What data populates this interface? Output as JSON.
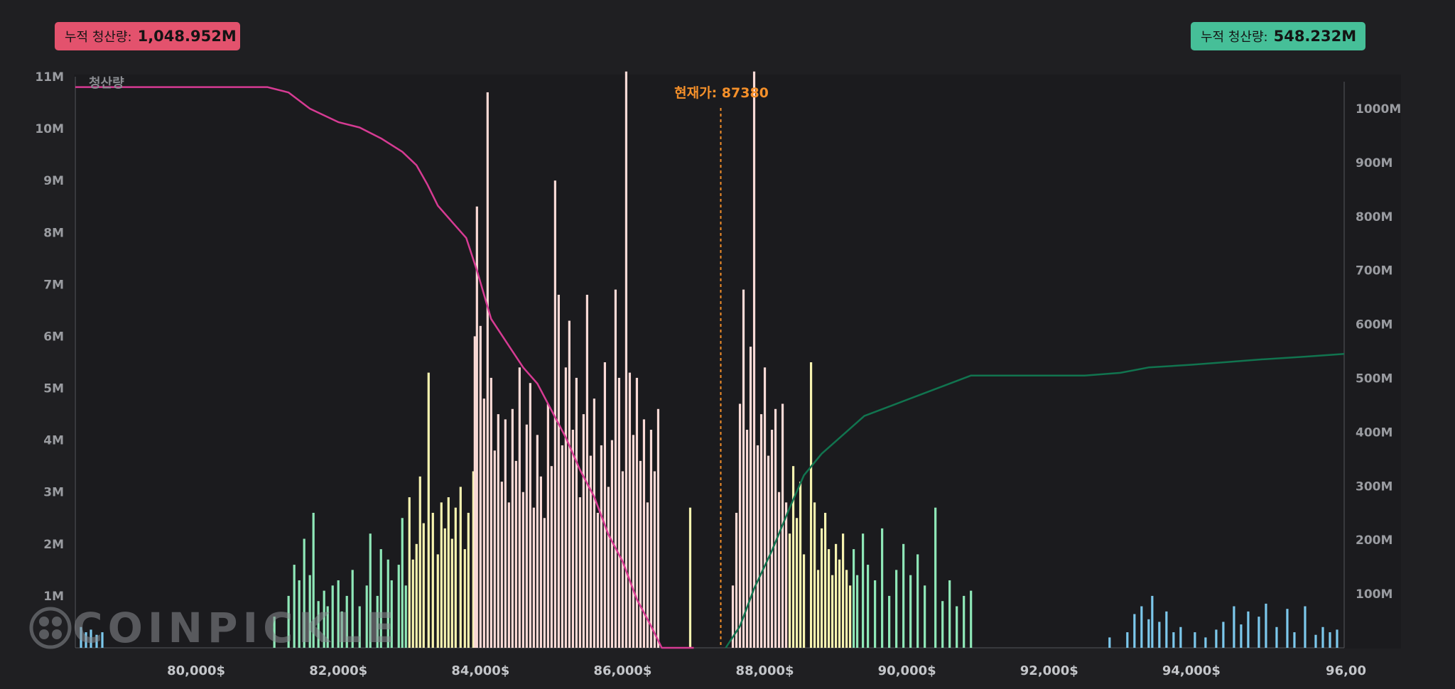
{
  "badges": {
    "left": {
      "label": "누적 청산량:",
      "value": "1,048.952M",
      "color": "#e3526d"
    },
    "right": {
      "label": "누적 청산량:",
      "value": "548.232M",
      "color": "#46bf98"
    }
  },
  "watermark": "COINPICKLE",
  "chart_data": {
    "type": "bar",
    "title": "",
    "ylabel": "청산량",
    "xlim": [
      78300,
      96150
    ],
    "ylim_left": [
      0,
      11000000
    ],
    "ylim_right": [
      0,
      1050000000
    ],
    "x_ticks": [
      "80,000$",
      "82,000$",
      "84,000$",
      "86,000$",
      "88,000$",
      "90,000$",
      "92,000$",
      "94,000$",
      "96,00"
    ],
    "y_left_ticks": [
      "1M",
      "2M",
      "3M",
      "4M",
      "5M",
      "6M",
      "7M",
      "8M",
      "9M",
      "10M",
      "11M"
    ],
    "y_right_ticks": [
      "100M",
      "200M",
      "300M",
      "400M",
      "500M",
      "600M",
      "700M",
      "800M",
      "900M",
      "1000M"
    ],
    "current_price": {
      "label": "현재가: 87380",
      "value": 87380,
      "color": "#f5902a"
    },
    "bar_colors": [
      "#8fe8b8",
      "#f7f3b0",
      "#fbdad6",
      "#7cc8ec"
    ],
    "bars": [
      {
        "x": 78380,
        "value": 400000,
        "level": 3
      },
      {
        "x": 78450,
        "value": 300000,
        "level": 3
      },
      {
        "x": 78520,
        "value": 350000,
        "level": 3
      },
      {
        "x": 78600,
        "value": 250000,
        "level": 3
      },
      {
        "x": 78680,
        "value": 300000,
        "level": 3
      },
      {
        "x": 81100,
        "value": 600000,
        "level": 0
      },
      {
        "x": 81300,
        "value": 1000000,
        "level": 0
      },
      {
        "x": 81380,
        "value": 1600000,
        "level": 0
      },
      {
        "x": 81450,
        "value": 1300000,
        "level": 0
      },
      {
        "x": 81520,
        "value": 2100000,
        "level": 0
      },
      {
        "x": 81600,
        "value": 1400000,
        "level": 0
      },
      {
        "x": 81650,
        "value": 2600000,
        "level": 0
      },
      {
        "x": 81720,
        "value": 900000,
        "level": 0
      },
      {
        "x": 81800,
        "value": 1100000,
        "level": 0
      },
      {
        "x": 81850,
        "value": 800000,
        "level": 0
      },
      {
        "x": 81920,
        "value": 1200000,
        "level": 0
      },
      {
        "x": 82000,
        "value": 1300000,
        "level": 0
      },
      {
        "x": 82050,
        "value": 700000,
        "level": 0
      },
      {
        "x": 82120,
        "value": 1000000,
        "level": 0
      },
      {
        "x": 82200,
        "value": 1500000,
        "level": 0
      },
      {
        "x": 82300,
        "value": 800000,
        "level": 0
      },
      {
        "x": 82400,
        "value": 1200000,
        "level": 0
      },
      {
        "x": 82450,
        "value": 2200000,
        "level": 0
      },
      {
        "x": 82550,
        "value": 1000000,
        "level": 0
      },
      {
        "x": 82600,
        "value": 1900000,
        "level": 0
      },
      {
        "x": 82700,
        "value": 1700000,
        "level": 0
      },
      {
        "x": 82750,
        "value": 1300000,
        "level": 0
      },
      {
        "x": 82850,
        "value": 1600000,
        "level": 0
      },
      {
        "x": 82900,
        "value": 2500000,
        "level": 0
      },
      {
        "x": 82950,
        "value": 1200000,
        "level": 0
      },
      {
        "x": 83000,
        "value": 2900000,
        "level": 1
      },
      {
        "x": 83050,
        "value": 1700000,
        "level": 1
      },
      {
        "x": 83100,
        "value": 2000000,
        "level": 1
      },
      {
        "x": 83150,
        "value": 3300000,
        "level": 1
      },
      {
        "x": 83200,
        "value": 2400000,
        "level": 1
      },
      {
        "x": 83270,
        "value": 5300000,
        "level": 1
      },
      {
        "x": 83330,
        "value": 2600000,
        "level": 1
      },
      {
        "x": 83400,
        "value": 1800000,
        "level": 1
      },
      {
        "x": 83450,
        "value": 2800000,
        "level": 1
      },
      {
        "x": 83500,
        "value": 2300000,
        "level": 1
      },
      {
        "x": 83550,
        "value": 2900000,
        "level": 1
      },
      {
        "x": 83600,
        "value": 2100000,
        "level": 1
      },
      {
        "x": 83650,
        "value": 2700000,
        "level": 1
      },
      {
        "x": 83720,
        "value": 3100000,
        "level": 1
      },
      {
        "x": 83780,
        "value": 1900000,
        "level": 1
      },
      {
        "x": 83830,
        "value": 2600000,
        "level": 1
      },
      {
        "x": 83900,
        "value": 3400000,
        "level": 1
      },
      {
        "x": 83920,
        "value": 6000000,
        "level": 2
      },
      {
        "x": 83950,
        "value": 8500000,
        "level": 2
      },
      {
        "x": 84000,
        "value": 6200000,
        "level": 2
      },
      {
        "x": 84050,
        "value": 4800000,
        "level": 2
      },
      {
        "x": 84100,
        "value": 10700000,
        "level": 2
      },
      {
        "x": 84150,
        "value": 5200000,
        "level": 2
      },
      {
        "x": 84200,
        "value": 3800000,
        "level": 2
      },
      {
        "x": 84250,
        "value": 4500000,
        "level": 2
      },
      {
        "x": 84300,
        "value": 3200000,
        "level": 2
      },
      {
        "x": 84350,
        "value": 4400000,
        "level": 2
      },
      {
        "x": 84400,
        "value": 2800000,
        "level": 2
      },
      {
        "x": 84450,
        "value": 4600000,
        "level": 2
      },
      {
        "x": 84500,
        "value": 3600000,
        "level": 2
      },
      {
        "x": 84550,
        "value": 5400000,
        "level": 2
      },
      {
        "x": 84600,
        "value": 3000000,
        "level": 2
      },
      {
        "x": 84650,
        "value": 4300000,
        "level": 2
      },
      {
        "x": 84700,
        "value": 5100000,
        "level": 2
      },
      {
        "x": 84750,
        "value": 2700000,
        "level": 2
      },
      {
        "x": 84800,
        "value": 4100000,
        "level": 2
      },
      {
        "x": 84850,
        "value": 3300000,
        "level": 2
      },
      {
        "x": 84900,
        "value": 2500000,
        "level": 2
      },
      {
        "x": 84950,
        "value": 4700000,
        "level": 2
      },
      {
        "x": 85000,
        "value": 3500000,
        "level": 2
      },
      {
        "x": 85050,
        "value": 9000000,
        "level": 2
      },
      {
        "x": 85100,
        "value": 6800000,
        "level": 2
      },
      {
        "x": 85150,
        "value": 3900000,
        "level": 2
      },
      {
        "x": 85200,
        "value": 5400000,
        "level": 2
      },
      {
        "x": 85250,
        "value": 6300000,
        "level": 2
      },
      {
        "x": 85300,
        "value": 4200000,
        "level": 2
      },
      {
        "x": 85350,
        "value": 5200000,
        "level": 2
      },
      {
        "x": 85400,
        "value": 2900000,
        "level": 2
      },
      {
        "x": 85450,
        "value": 4500000,
        "level": 2
      },
      {
        "x": 85500,
        "value": 6800000,
        "level": 2
      },
      {
        "x": 85550,
        "value": 3700000,
        "level": 2
      },
      {
        "x": 85600,
        "value": 4800000,
        "level": 2
      },
      {
        "x": 85650,
        "value": 2600000,
        "level": 2
      },
      {
        "x": 85700,
        "value": 3900000,
        "level": 2
      },
      {
        "x": 85750,
        "value": 5500000,
        "level": 2
      },
      {
        "x": 85800,
        "value": 3100000,
        "level": 2
      },
      {
        "x": 85850,
        "value": 4000000,
        "level": 2
      },
      {
        "x": 85900,
        "value": 6900000,
        "level": 2
      },
      {
        "x": 85950,
        "value": 5200000,
        "level": 2
      },
      {
        "x": 86000,
        "value": 3400000,
        "level": 2
      },
      {
        "x": 86050,
        "value": 11100000,
        "level": 2
      },
      {
        "x": 86100,
        "value": 5300000,
        "level": 2
      },
      {
        "x": 86150,
        "value": 4100000,
        "level": 2
      },
      {
        "x": 86200,
        "value": 5200000,
        "level": 2
      },
      {
        "x": 86250,
        "value": 3600000,
        "level": 2
      },
      {
        "x": 86300,
        "value": 4400000,
        "level": 2
      },
      {
        "x": 86350,
        "value": 2800000,
        "level": 2
      },
      {
        "x": 86400,
        "value": 4200000,
        "level": 2
      },
      {
        "x": 86450,
        "value": 3400000,
        "level": 2
      },
      {
        "x": 86500,
        "value": 4600000,
        "level": 2
      },
      {
        "x": 86950,
        "value": 2700000,
        "level": 1
      },
      {
        "x": 87550,
        "value": 1200000,
        "level": 2
      },
      {
        "x": 87600,
        "value": 2600000,
        "level": 2
      },
      {
        "x": 87650,
        "value": 4700000,
        "level": 2
      },
      {
        "x": 87700,
        "value": 6900000,
        "level": 2
      },
      {
        "x": 87750,
        "value": 4200000,
        "level": 2
      },
      {
        "x": 87800,
        "value": 5800000,
        "level": 2
      },
      {
        "x": 87850,
        "value": 11100000,
        "level": 2
      },
      {
        "x": 87900,
        "value": 3900000,
        "level": 2
      },
      {
        "x": 87950,
        "value": 4500000,
        "level": 2
      },
      {
        "x": 88000,
        "value": 5400000,
        "level": 2
      },
      {
        "x": 88050,
        "value": 3700000,
        "level": 2
      },
      {
        "x": 88100,
        "value": 4200000,
        "level": 2
      },
      {
        "x": 88150,
        "value": 4600000,
        "level": 2
      },
      {
        "x": 88200,
        "value": 3000000,
        "level": 2
      },
      {
        "x": 88250,
        "value": 4700000,
        "level": 2
      },
      {
        "x": 88300,
        "value": 2800000,
        "level": 2
      },
      {
        "x": 88350,
        "value": 2200000,
        "level": 1
      },
      {
        "x": 88400,
        "value": 3500000,
        "level": 1
      },
      {
        "x": 88450,
        "value": 2500000,
        "level": 1
      },
      {
        "x": 88500,
        "value": 3200000,
        "level": 1
      },
      {
        "x": 88550,
        "value": 1800000,
        "level": 1
      },
      {
        "x": 88650,
        "value": 5500000,
        "level": 1
      },
      {
        "x": 88700,
        "value": 2800000,
        "level": 1
      },
      {
        "x": 88750,
        "value": 1500000,
        "level": 1
      },
      {
        "x": 88800,
        "value": 2300000,
        "level": 1
      },
      {
        "x": 88850,
        "value": 2600000,
        "level": 1
      },
      {
        "x": 88900,
        "value": 1900000,
        "level": 1
      },
      {
        "x": 88950,
        "value": 1400000,
        "level": 1
      },
      {
        "x": 89000,
        "value": 2000000,
        "level": 1
      },
      {
        "x": 89050,
        "value": 1700000,
        "level": 1
      },
      {
        "x": 89100,
        "value": 2200000,
        "level": 1
      },
      {
        "x": 89150,
        "value": 1500000,
        "level": 1
      },
      {
        "x": 89200,
        "value": 1200000,
        "level": 1
      },
      {
        "x": 89250,
        "value": 1900000,
        "level": 0
      },
      {
        "x": 89300,
        "value": 1400000,
        "level": 0
      },
      {
        "x": 89380,
        "value": 2200000,
        "level": 0
      },
      {
        "x": 89450,
        "value": 1600000,
        "level": 0
      },
      {
        "x": 89550,
        "value": 1300000,
        "level": 0
      },
      {
        "x": 89650,
        "value": 2300000,
        "level": 0
      },
      {
        "x": 89750,
        "value": 1000000,
        "level": 0
      },
      {
        "x": 89850,
        "value": 1500000,
        "level": 0
      },
      {
        "x": 89950,
        "value": 2000000,
        "level": 0
      },
      {
        "x": 90050,
        "value": 1400000,
        "level": 0
      },
      {
        "x": 90150,
        "value": 1800000,
        "level": 0
      },
      {
        "x": 90250,
        "value": 1200000,
        "level": 0
      },
      {
        "x": 90400,
        "value": 2700000,
        "level": 0
      },
      {
        "x": 90500,
        "value": 900000,
        "level": 0
      },
      {
        "x": 90600,
        "value": 1300000,
        "level": 0
      },
      {
        "x": 90700,
        "value": 800000,
        "level": 0
      },
      {
        "x": 90800,
        "value": 1000000,
        "level": 0
      },
      {
        "x": 90900,
        "value": 1100000,
        "level": 0
      },
      {
        "x": 92850,
        "value": 200000,
        "level": 3
      },
      {
        "x": 93100,
        "value": 300000,
        "level": 3
      },
      {
        "x": 93200,
        "value": 650000,
        "level": 3
      },
      {
        "x": 93300,
        "value": 800000,
        "level": 3
      },
      {
        "x": 93400,
        "value": 550000,
        "level": 3
      },
      {
        "x": 93450,
        "value": 1000000,
        "level": 3
      },
      {
        "x": 93550,
        "value": 500000,
        "level": 3
      },
      {
        "x": 93650,
        "value": 700000,
        "level": 3
      },
      {
        "x": 93750,
        "value": 300000,
        "level": 3
      },
      {
        "x": 93850,
        "value": 400000,
        "level": 3
      },
      {
        "x": 94050,
        "value": 300000,
        "level": 3
      },
      {
        "x": 94200,
        "value": 200000,
        "level": 3
      },
      {
        "x": 94350,
        "value": 350000,
        "level": 3
      },
      {
        "x": 94450,
        "value": 500000,
        "level": 3
      },
      {
        "x": 94600,
        "value": 800000,
        "level": 3
      },
      {
        "x": 94700,
        "value": 450000,
        "level": 3
      },
      {
        "x": 94800,
        "value": 700000,
        "level": 3
      },
      {
        "x": 94950,
        "value": 600000,
        "level": 3
      },
      {
        "x": 95050,
        "value": 850000,
        "level": 3
      },
      {
        "x": 95200,
        "value": 400000,
        "level": 3
      },
      {
        "x": 95350,
        "value": 750000,
        "level": 3
      },
      {
        "x": 95450,
        "value": 300000,
        "level": 3
      },
      {
        "x": 95600,
        "value": 800000,
        "level": 3
      },
      {
        "x": 95750,
        "value": 250000,
        "level": 3
      },
      {
        "x": 95850,
        "value": 400000,
        "level": 3
      },
      {
        "x": 95950,
        "value": 300000,
        "level": 3
      },
      {
        "x": 96050,
        "value": 350000,
        "level": 3
      }
    ],
    "series": [
      {
        "color": "#d63b93",
        "axis": "right",
        "points": [
          [
            78300,
            1040000000
          ],
          [
            80000,
            1040000000
          ],
          [
            81000,
            1040000000
          ],
          [
            81300,
            1030000000
          ],
          [
            81600,
            1000000000
          ],
          [
            82000,
            975000000
          ],
          [
            82300,
            965000000
          ],
          [
            82600,
            945000000
          ],
          [
            82900,
            920000000
          ],
          [
            83100,
            895000000
          ],
          [
            83250,
            860000000
          ],
          [
            83400,
            820000000
          ],
          [
            83600,
            790000000
          ],
          [
            83800,
            760000000
          ],
          [
            83950,
            700000000
          ],
          [
            84150,
            610000000
          ],
          [
            84400,
            560000000
          ],
          [
            84600,
            520000000
          ],
          [
            84800,
            490000000
          ],
          [
            85000,
            440000000
          ],
          [
            85200,
            390000000
          ],
          [
            85400,
            330000000
          ],
          [
            85600,
            280000000
          ],
          [
            85800,
            210000000
          ],
          [
            86000,
            160000000
          ],
          [
            86200,
            90000000
          ],
          [
            86400,
            40000000
          ],
          [
            86550,
            0
          ],
          [
            87000,
            0
          ]
        ]
      },
      {
        "color": "#11744f",
        "axis": "right",
        "points": [
          [
            87450,
            0
          ],
          [
            87650,
            40000000
          ],
          [
            87850,
            110000000
          ],
          [
            88100,
            180000000
          ],
          [
            88350,
            260000000
          ],
          [
            88550,
            320000000
          ],
          [
            88800,
            360000000
          ],
          [
            89100,
            395000000
          ],
          [
            89400,
            430000000
          ],
          [
            89800,
            450000000
          ],
          [
            90200,
            470000000
          ],
          [
            90600,
            490000000
          ],
          [
            90900,
            505000000
          ],
          [
            91500,
            505000000
          ],
          [
            92500,
            505000000
          ],
          [
            93000,
            510000000
          ],
          [
            93400,
            520000000
          ],
          [
            94000,
            525000000
          ],
          [
            94500,
            530000000
          ],
          [
            95000,
            535000000
          ],
          [
            95600,
            540000000
          ],
          [
            96150,
            545000000
          ]
        ]
      }
    ]
  }
}
